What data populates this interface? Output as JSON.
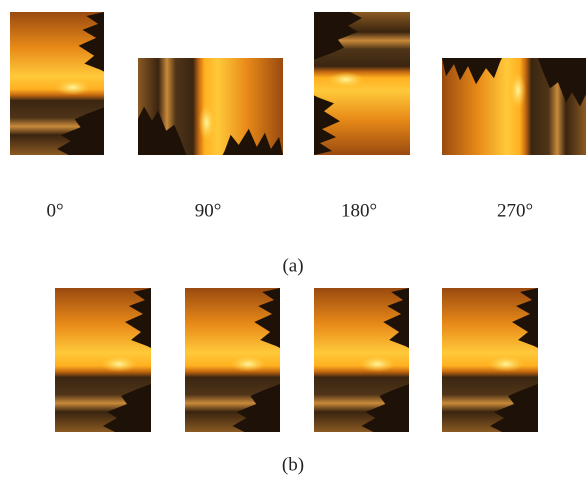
{
  "panel_a": {
    "angle_labels": [
      "0°",
      "90°",
      "180°",
      "270°"
    ],
    "caption": "(a)"
  },
  "panel_b": {
    "caption": "(b)"
  }
}
